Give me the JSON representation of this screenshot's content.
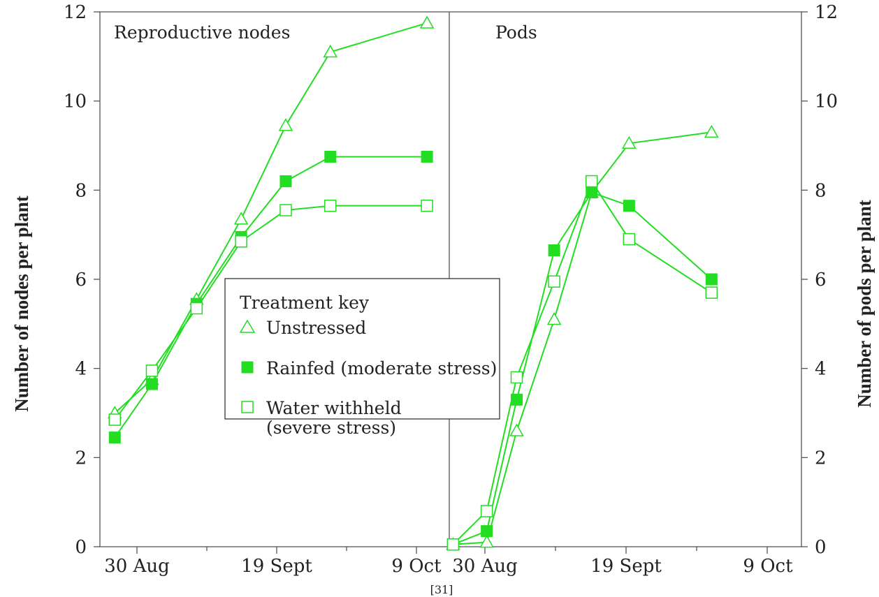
{
  "chart_data": {
    "type": "line",
    "colors": {
      "series": "#22dd22",
      "axis": "#555555"
    },
    "y_ticks": [
      0,
      2,
      4,
      6,
      8,
      10,
      12
    ],
    "ylim": [
      0,
      12
    ],
    "left_axis_label": "Number of nodes per plant",
    "right_axis_label": "Number of pods per plant",
    "footnote": "[31]",
    "legend": {
      "title": "Treatment key",
      "entries": [
        {
          "marker": "triangle-open",
          "label": "Unstressed",
          "label2": ""
        },
        {
          "marker": "square-filled",
          "label": "Rainfed (moderate stress)",
          "label2": ""
        },
        {
          "marker": "square-open",
          "label": "Water withheld",
          "label2": "(severe stress)"
        }
      ]
    },
    "panels": [
      {
        "title": "Reproductive nodes",
        "x_ticks": [
          "30 Aug",
          "19 Sept",
          "9 Oct"
        ],
        "x_range": [
          0,
          47
        ],
        "series": [
          {
            "name": "Unstressed",
            "marker": "triangle-open",
            "x": [
              2,
              7,
              13,
              19,
              25,
              31,
              44
            ],
            "y": [
              3.0,
              3.75,
              5.55,
              7.35,
              9.45,
              11.1,
              11.75
            ]
          },
          {
            "name": "Rainfed (moderate stress)",
            "marker": "square-filled",
            "x": [
              2,
              7,
              13,
              19,
              25,
              31,
              44
            ],
            "y": [
              2.45,
              3.65,
              5.45,
              6.95,
              8.2,
              8.75,
              8.75
            ]
          },
          {
            "name": "Water withheld (severe stress)",
            "marker": "square-open",
            "x": [
              2,
              7,
              13,
              19,
              25,
              31,
              44
            ],
            "y": [
              2.85,
              3.95,
              5.35,
              6.85,
              7.55,
              7.65,
              7.65
            ]
          }
        ]
      },
      {
        "title": "Pods",
        "x_ticks": [
          "30 Aug",
          "19 Sept",
          "9 Oct"
        ],
        "x_range": [
          0,
          47
        ],
        "series": [
          {
            "name": "Unstressed",
            "marker": "triangle-open",
            "x": [
              0.5,
              5,
              9,
              14,
              19,
              24,
              35
            ],
            "y": [
              0.05,
              0.1,
              2.6,
              5.1,
              7.95,
              9.05,
              9.3
            ]
          },
          {
            "name": "Rainfed (moderate stress)",
            "marker": "square-filled",
            "x": [
              0.5,
              5,
              9,
              14,
              19,
              24,
              35
            ],
            "y": [
              0.05,
              0.35,
              3.3,
              6.65,
              7.95,
              7.65,
              6.0
            ]
          },
          {
            "name": "Water withheld (severe stress)",
            "marker": "square-open",
            "x": [
              0.5,
              5,
              9,
              14,
              19,
              24,
              35
            ],
            "y": [
              0.05,
              0.8,
              3.8,
              5.95,
              8.2,
              6.9,
              5.7
            ]
          }
        ]
      }
    ]
  }
}
